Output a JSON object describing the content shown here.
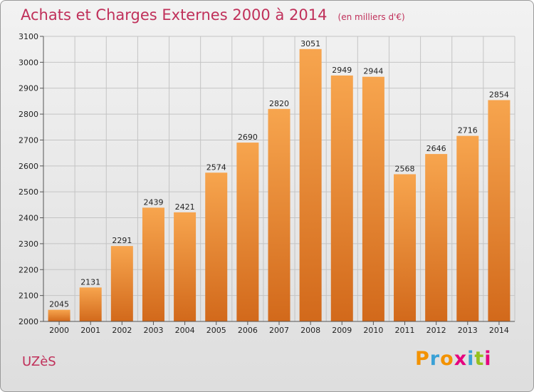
{
  "header": {
    "title": "Achats et Charges Externes 2000 à 2014",
    "subtitle": "(en milliers d'€)"
  },
  "footer": {
    "commune": "UZèS",
    "logo_text": "Proxiti",
    "logo_colors": [
      "#f39200",
      "#3aa1d6",
      "#f39200",
      "#e6007e",
      "#3aa1d6",
      "#95c11f",
      "#e6007e"
    ]
  },
  "chart_data": {
    "type": "bar",
    "title": "Achats et Charges Externes 2000 à 2014",
    "subtitle": "(en milliers d'€)",
    "categories": [
      "2000",
      "2001",
      "2002",
      "2003",
      "2004",
      "2005",
      "2006",
      "2007",
      "2008",
      "2009",
      "2010",
      "2011",
      "2012",
      "2013",
      "2014"
    ],
    "values": [
      2045,
      2131,
      2291,
      2439,
      2421,
      2574,
      2690,
      2820,
      3051,
      2949,
      2944,
      2568,
      2646,
      2716,
      2854
    ],
    "ylim": [
      2000,
      3100
    ],
    "yticks": [
      2000,
      2100,
      2200,
      2300,
      2400,
      2500,
      2600,
      2700,
      2800,
      2900,
      3000,
      3100
    ],
    "grid": true,
    "bar_color_top": "#f7a54e",
    "bar_color_bottom": "#d2691b"
  }
}
